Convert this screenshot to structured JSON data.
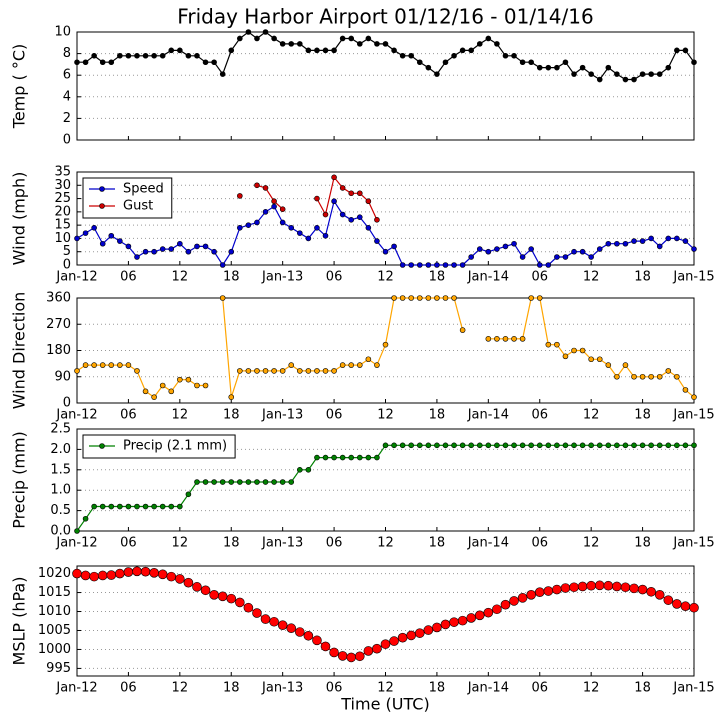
{
  "chart_data": [
    {
      "type": "line",
      "title": "Friday Harbor Airport 01/12/16 - 01/14/16",
      "ylabel": "Temp ( °C)",
      "xlim": [
        0,
        72
      ],
      "xticks": [
        0,
        6,
        12,
        18,
        24,
        30,
        36,
        42,
        48,
        54,
        60,
        66,
        72
      ],
      "ylim": [
        0,
        10
      ],
      "yticks": [
        0,
        2,
        4,
        6,
        8,
        10
      ],
      "grid": true,
      "x": [
        0,
        1,
        2,
        3,
        4,
        5,
        6,
        7,
        8,
        9,
        10,
        11,
        12,
        13,
        14,
        15,
        16,
        17,
        18,
        19,
        20,
        21,
        22,
        23,
        24,
        25,
        26,
        27,
        28,
        29,
        30,
        31,
        32,
        33,
        34,
        35,
        36,
        37,
        38,
        39,
        40,
        41,
        42,
        43,
        44,
        45,
        46,
        47,
        48,
        49,
        50,
        51,
        52,
        53,
        54,
        55,
        56,
        57,
        58,
        59,
        60,
        61,
        62,
        63,
        64,
        65,
        66,
        67,
        68,
        69,
        70,
        71,
        72
      ],
      "series": [
        {
          "color": "#000000",
          "values": [
            7.2,
            7.2,
            7.8,
            7.2,
            7.2,
            7.8,
            7.8,
            7.8,
            7.8,
            7.8,
            7.8,
            8.3,
            8.3,
            7.8,
            7.8,
            7.2,
            7.2,
            6.1,
            8.3,
            9.4,
            10,
            9.4,
            10,
            9.4,
            8.9,
            8.9,
            8.9,
            8.3,
            8.3,
            8.3,
            8.3,
            9.4,
            9.4,
            8.9,
            9.4,
            8.9,
            8.9,
            8.3,
            7.8,
            7.8,
            7.2,
            6.7,
            6.1,
            7.2,
            7.8,
            8.3,
            8.3,
            8.9,
            9.4,
            8.9,
            7.8,
            7.8,
            7.2,
            7.2,
            6.7,
            6.7,
            6.7,
            7.2,
            6.1,
            6.7,
            6.1,
            5.6,
            6.7,
            6.1,
            5.6,
            5.6,
            6.1,
            6.1,
            6.1,
            6.7,
            8.3,
            8.3,
            7.2
          ]
        }
      ]
    },
    {
      "type": "line",
      "ylabel": "Wind (mph)",
      "xlim": [
        0,
        72
      ],
      "xticks": [
        {
          "value": 0,
          "label": "Jan-12"
        },
        {
          "value": 6,
          "label": "06"
        },
        {
          "value": 12,
          "label": "12"
        },
        {
          "value": 18,
          "label": "18"
        },
        {
          "value": 24,
          "label": "Jan-13"
        },
        {
          "value": 30,
          "label": "06"
        },
        {
          "value": 36,
          "label": "12"
        },
        {
          "value": 42,
          "label": "18"
        },
        {
          "value": 48,
          "label": "Jan-14"
        },
        {
          "value": 54,
          "label": "06"
        },
        {
          "value": 60,
          "label": "12"
        },
        {
          "value": 66,
          "label": "18"
        },
        {
          "value": 72,
          "label": "Jan-15"
        }
      ],
      "ylim": [
        0,
        35
      ],
      "yticks": [
        0,
        5,
        10,
        15,
        20,
        25,
        30,
        35
      ],
      "grid": true,
      "legend": "upper left",
      "x": [
        0,
        1,
        2,
        3,
        4,
        5,
        6,
        7,
        8,
        9,
        10,
        11,
        12,
        13,
        14,
        15,
        16,
        17,
        18,
        19,
        20,
        21,
        22,
        23,
        24,
        25,
        26,
        27,
        28,
        29,
        30,
        31,
        32,
        33,
        34,
        35,
        36,
        37,
        38,
        39,
        40,
        41,
        42,
        43,
        44,
        45,
        46,
        47,
        48,
        49,
        50,
        51,
        52,
        53,
        54,
        55,
        56,
        57,
        58,
        59,
        60,
        61,
        62,
        63,
        64,
        65,
        66,
        67,
        68,
        69,
        70,
        71,
        72
      ],
      "series": [
        {
          "name": "Speed",
          "color": "#0000cc",
          "values": [
            10,
            12,
            14,
            8,
            11,
            9,
            7,
            3,
            5,
            5,
            6,
            6,
            8,
            5,
            7,
            7,
            5,
            0,
            5,
            14,
            15,
            16,
            20,
            22,
            16,
            14,
            12,
            10,
            14,
            11,
            24,
            19,
            17,
            18,
            14,
            9,
            5,
            7,
            0,
            0,
            0,
            0,
            0,
            0,
            0,
            0,
            3,
            6,
            5,
            6,
            7,
            8,
            3,
            6,
            0,
            0,
            3,
            3,
            5,
            5,
            3,
            6,
            8,
            8,
            8,
            9,
            9,
            10,
            7,
            10,
            10,
            9,
            6
          ]
        },
        {
          "name": "Gust",
          "color": "#cc0000",
          "values": [
            null,
            null,
            null,
            null,
            null,
            null,
            null,
            null,
            null,
            null,
            null,
            null,
            null,
            null,
            null,
            null,
            null,
            null,
            null,
            26,
            null,
            30,
            29,
            24,
            21,
            null,
            null,
            null,
            25,
            19,
            33,
            29,
            27,
            27,
            24,
            17,
            null,
            null,
            null,
            null,
            null,
            null,
            null,
            null,
            null,
            null,
            null,
            null,
            null,
            null,
            null,
            null,
            null,
            null,
            null,
            null,
            null,
            null,
            null,
            null,
            null,
            null,
            null,
            null,
            null,
            null,
            null,
            null,
            null,
            null,
            null,
            null,
            null
          ]
        }
      ]
    },
    {
      "type": "line",
      "ylabel": "Wind Direction",
      "xlim": [
        0,
        72
      ],
      "xticks": [
        {
          "value": 0,
          "label": "Jan-12"
        },
        {
          "value": 6,
          "label": "06"
        },
        {
          "value": 12,
          "label": "12"
        },
        {
          "value": 18,
          "label": "18"
        },
        {
          "value": 24,
          "label": "Jan-13"
        },
        {
          "value": 30,
          "label": "06"
        },
        {
          "value": 36,
          "label": "12"
        },
        {
          "value": 42,
          "label": "18"
        },
        {
          "value": 48,
          "label": "Jan-14"
        },
        {
          "value": 54,
          "label": "06"
        },
        {
          "value": 60,
          "label": "12"
        },
        {
          "value": 66,
          "label": "18"
        },
        {
          "value": 72,
          "label": "Jan-15"
        }
      ],
      "ylim": [
        0,
        360
      ],
      "yticks": [
        0,
        90,
        180,
        270,
        360
      ],
      "grid": true,
      "x": [
        0,
        1,
        2,
        3,
        4,
        5,
        6,
        7,
        8,
        9,
        10,
        11,
        12,
        13,
        14,
        15,
        16,
        17,
        18,
        19,
        20,
        21,
        22,
        23,
        24,
        25,
        26,
        27,
        28,
        29,
        30,
        31,
        32,
        33,
        34,
        35,
        36,
        37,
        38,
        39,
        40,
        41,
        42,
        43,
        44,
        45,
        46,
        47,
        48,
        49,
        50,
        51,
        52,
        53,
        54,
        55,
        56,
        57,
        58,
        59,
        60,
        61,
        62,
        63,
        64,
        65,
        66,
        67,
        68,
        69,
        70,
        71,
        72
      ],
      "series": [
        {
          "color": "#ffa500",
          "values": [
            110,
            130,
            130,
            130,
            130,
            130,
            130,
            110,
            40,
            20,
            60,
            40,
            80,
            80,
            60,
            60,
            null,
            360,
            20,
            110,
            110,
            110,
            110,
            110,
            110,
            130,
            110,
            110,
            110,
            110,
            110,
            130,
            130,
            130,
            150,
            130,
            200,
            360,
            360,
            360,
            360,
            360,
            360,
            360,
            360,
            250,
            null,
            null,
            220,
            220,
            220,
            220,
            220,
            360,
            360,
            200,
            200,
            160,
            180,
            180,
            150,
            150,
            130,
            90,
            130,
            90,
            90,
            90,
            90,
            110,
            90,
            45,
            20
          ]
        }
      ]
    },
    {
      "type": "line",
      "ylabel": "Precip (mm)",
      "xlim": [
        0,
        72
      ],
      "xticks": [
        {
          "value": 0,
          "label": "Jan-12"
        },
        {
          "value": 6,
          "label": "06"
        },
        {
          "value": 12,
          "label": "12"
        },
        {
          "value": 18,
          "label": "18"
        },
        {
          "value": 24,
          "label": "Jan-13"
        },
        {
          "value": 30,
          "label": "06"
        },
        {
          "value": 36,
          "label": "12"
        },
        {
          "value": 42,
          "label": "18"
        },
        {
          "value": 48,
          "label": "Jan-14"
        },
        {
          "value": 54,
          "label": "06"
        },
        {
          "value": 60,
          "label": "12"
        },
        {
          "value": 66,
          "label": "18"
        },
        {
          "value": 72,
          "label": "Jan-15"
        }
      ],
      "ylim": [
        0,
        2.5
      ],
      "yticks": [
        {
          "value": 0,
          "label": "0.0"
        },
        {
          "value": 0.5,
          "label": "0.5"
        },
        {
          "value": 1,
          "label": "1.0"
        },
        {
          "value": 1.5,
          "label": "1.5"
        },
        {
          "value": 2,
          "label": "2.0"
        },
        {
          "value": 2.5,
          "label": "2.5"
        }
      ],
      "grid": true,
      "legend": "upper left",
      "x": [
        0,
        1,
        2,
        3,
        4,
        5,
        6,
        7,
        8,
        9,
        10,
        11,
        12,
        13,
        14,
        15,
        16,
        17,
        18,
        19,
        20,
        21,
        22,
        23,
        24,
        25,
        26,
        27,
        28,
        29,
        30,
        31,
        32,
        33,
        34,
        35,
        36,
        37,
        38,
        39,
        40,
        41,
        42,
        43,
        44,
        45,
        46,
        47,
        48,
        49,
        50,
        51,
        52,
        53,
        54,
        55,
        56,
        57,
        58,
        59,
        60,
        61,
        62,
        63,
        64,
        65,
        66,
        67,
        68,
        69,
        70,
        71,
        72
      ],
      "series": [
        {
          "name": "Precip (2.1 mm)",
          "color": "#008000",
          "values": [
            0,
            0.3,
            0.6,
            0.6,
            0.6,
            0.6,
            0.6,
            0.6,
            0.6,
            0.6,
            0.6,
            0.6,
            0.6,
            0.9,
            1.2,
            1.2,
            1.2,
            1.2,
            1.2,
            1.2,
            1.2,
            1.2,
            1.2,
            1.2,
            1.2,
            1.2,
            1.5,
            1.5,
            1.8,
            1.8,
            1.8,
            1.8,
            1.8,
            1.8,
            1.8,
            1.8,
            2.1,
            2.1,
            2.1,
            2.1,
            2.1,
            2.1,
            2.1,
            2.1,
            2.1,
            2.1,
            2.1,
            2.1,
            2.1,
            2.1,
            2.1,
            2.1,
            2.1,
            2.1,
            2.1,
            2.1,
            2.1,
            2.1,
            2.1,
            2.1,
            2.1,
            2.1,
            2.1,
            2.1,
            2.1,
            2.1,
            2.1,
            2.1,
            2.1,
            2.1,
            2.1,
            2.1,
            2.1
          ]
        }
      ]
    },
    {
      "type": "line",
      "ylabel": "MSLP (hPa)",
      "xlabel": "Time (UTC)",
      "xlim": [
        0,
        72
      ],
      "xticks": [
        {
          "value": 0,
          "label": "Jan-12"
        },
        {
          "value": 6,
          "label": "06"
        },
        {
          "value": 12,
          "label": "12"
        },
        {
          "value": 18,
          "label": "18"
        },
        {
          "value": 24,
          "label": "Jan-13"
        },
        {
          "value": 30,
          "label": "06"
        },
        {
          "value": 36,
          "label": "12"
        },
        {
          "value": 42,
          "label": "18"
        },
        {
          "value": 48,
          "label": "Jan-14"
        },
        {
          "value": 54,
          "label": "06"
        },
        {
          "value": 60,
          "label": "12"
        },
        {
          "value": 66,
          "label": "18"
        },
        {
          "value": 72,
          "label": "Jan-15"
        }
      ],
      "ylim": [
        993,
        1022
      ],
      "yticks": [
        995,
        1000,
        1005,
        1010,
        1015,
        1020
      ],
      "grid": true,
      "x": [
        0,
        1,
        2,
        3,
        4,
        5,
        6,
        7,
        8,
        9,
        10,
        11,
        12,
        13,
        14,
        15,
        16,
        17,
        18,
        19,
        20,
        21,
        22,
        23,
        24,
        25,
        26,
        27,
        28,
        29,
        30,
        31,
        32,
        33,
        34,
        35,
        36,
        37,
        38,
        39,
        40,
        41,
        42,
        43,
        44,
        45,
        46,
        47,
        48,
        49,
        50,
        51,
        52,
        53,
        54,
        55,
        56,
        57,
        58,
        59,
        60,
        61,
        62,
        63,
        64,
        65,
        66,
        67,
        68,
        69,
        70,
        71,
        72
      ],
      "series": [
        {
          "color": "#ff0000",
          "values": [
            1020,
            1019.5,
            1019.2,
            1019.5,
            1019.6,
            1020,
            1020.4,
            1020.6,
            1020.5,
            1020.2,
            1019.8,
            1019.2,
            1018.6,
            1017.6,
            1016.5,
            1015.6,
            1014.4,
            1014,
            1013.4,
            1012.4,
            1011,
            1009.6,
            1008,
            1007.3,
            1006.4,
            1005.6,
            1004.6,
            1003.6,
            1002.4,
            1000.8,
            999.2,
            998.3,
            997.9,
            998.2,
            999.6,
            1000.2,
            1001.4,
            1002.2,
            1003.1,
            1003.7,
            1004.3,
            1005.1,
            1005.8,
            1006.6,
            1007.2,
            1007.6,
            1008.3,
            1009,
            1009.7,
            1010.6,
            1011.8,
            1012.8,
            1013.6,
            1014.4,
            1015.1,
            1015.4,
            1015.8,
            1016.2,
            1016.4,
            1016.6,
            1016.8,
            1016.9,
            1016.8,
            1016.6,
            1016.4,
            1016.1,
            1015.8,
            1015.2,
            1014.4,
            1013,
            1012,
            1011.4,
            1011
          ]
        }
      ]
    }
  ]
}
